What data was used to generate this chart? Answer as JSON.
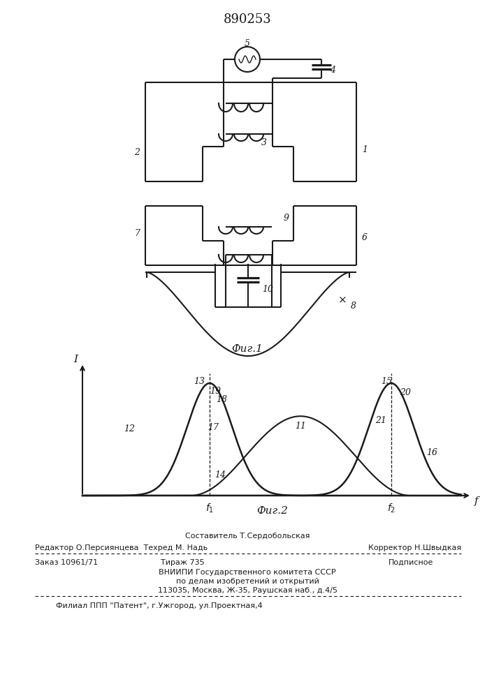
{
  "title": "890253",
  "fig1_label": "Фиг.1",
  "fig2_label": "Фиг.2",
  "background_color": "#ffffff",
  "line_color": "#1a1a1a",
  "text_color": "#1a1a1a",
  "footer_line0": "Составитель Т.Сердобольская",
  "footer_line1": "Редактор О.Персиянцева  Техред М. Надь",
  "footer_line1r": "Корректор Н.Швыдкая",
  "footer_line2a": "Заказ 10961/71",
  "footer_line2b": "Тираж 735",
  "footer_line2c": "Подписное",
  "footer_line3": "ВНИИПИ Государственного комитета СССР",
  "footer_line4": "по делам изобретений и открытий",
  "footer_line5": "113035, Москва, Ж-35, Раушская наб., д.4/5",
  "footer_line6": "Филиал ППП \"Патент\", г.Ужгород, ул.Проектная,4"
}
